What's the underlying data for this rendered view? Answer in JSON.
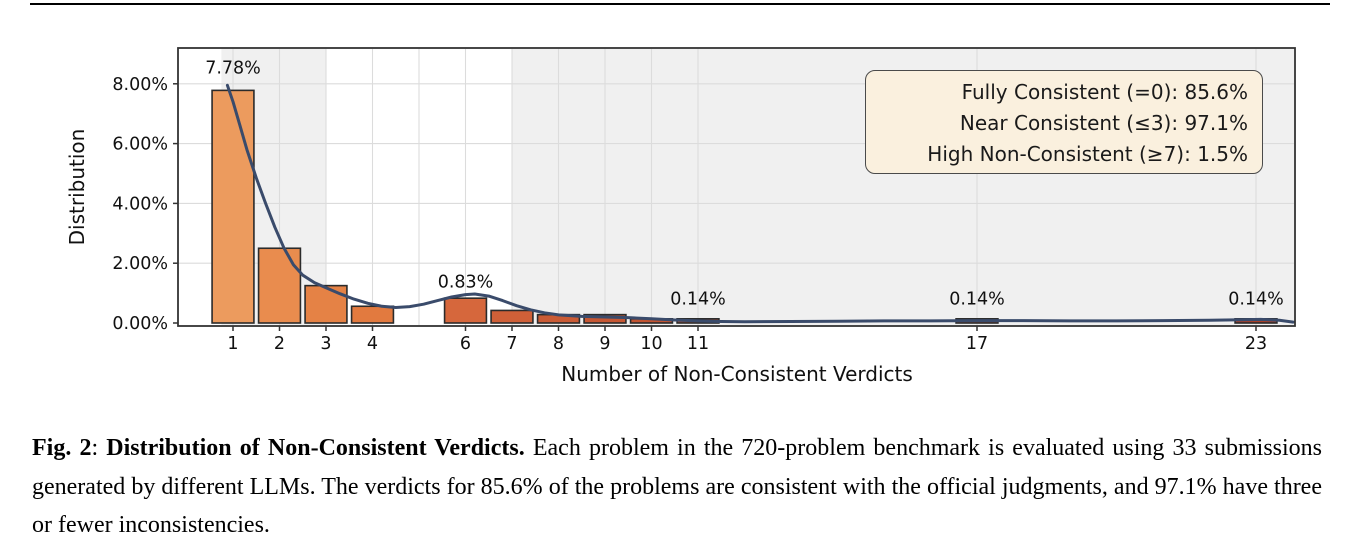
{
  "chart_data": {
    "type": "bar",
    "title": "",
    "xlabel": "Number of Non-Consistent Verdicts",
    "ylabel": "Distribution",
    "categories": [
      1,
      2,
      3,
      4,
      6,
      7,
      8,
      9,
      10,
      11,
      17,
      23
    ],
    "values": [
      7.78,
      2.5,
      1.25,
      0.56,
      0.83,
      0.42,
      0.28,
      0.28,
      0.14,
      0.14,
      0.14,
      0.14
    ],
    "bar_colors": [
      "#ec9b5e",
      "#e98c4e",
      "#e58245",
      "#e27a3f",
      "#d6673c",
      "#cf6038",
      "#ca5b35",
      "#c65733",
      "#c25431",
      "#be5130",
      "#b1462b",
      "#aa3f27"
    ],
    "bar_edge_color": "#2b2b2b",
    "y_ticks": [
      0,
      2,
      4,
      6,
      8
    ],
    "y_tick_labels": [
      "0.00%",
      "2.00%",
      "4.00%",
      "6.00%",
      "8.00%"
    ],
    "ylim": [
      -0.1,
      9.2
    ],
    "xlim": [
      -0.18,
      23.84
    ],
    "grid": true,
    "grid_color": "#dcdcdc",
    "grid_x_positions": [
      1,
      2,
      3,
      4,
      5,
      6,
      7,
      8,
      9,
      10,
      11,
      17,
      23
    ],
    "shaded_bands": [
      {
        "from": 0.75,
        "to": 3.0,
        "meaning": "near consistent (<=3)"
      },
      {
        "from": 7.0,
        "to": 23.84,
        "meaning": "high non-consistent (>=7)"
      }
    ],
    "band_color": "#f0f0f0",
    "spine_color": "#333333",
    "annotations": [
      {
        "x": 1,
        "text": "7.78%",
        "y_pct": 8.35
      },
      {
        "x": 6,
        "text": "0.83%",
        "y_pct": 1.18
      },
      {
        "x": 11,
        "text": "0.14%",
        "y_pct": 0.62
      },
      {
        "x": 17,
        "text": "0.14%",
        "y_pct": 0.62
      },
      {
        "x": 23,
        "text": "0.14%",
        "y_pct": 0.62
      }
    ],
    "kde": {
      "color": "#3a4b6b",
      "width": 3,
      "points": [
        [
          0.88,
          7.95
        ],
        [
          1.0,
          7.4
        ],
        [
          1.15,
          6.6
        ],
        [
          1.3,
          5.8
        ],
        [
          1.5,
          4.85
        ],
        [
          1.7,
          4.0
        ],
        [
          1.9,
          3.2
        ],
        [
          2.1,
          2.5
        ],
        [
          2.3,
          1.95
        ],
        [
          2.5,
          1.6
        ],
        [
          2.75,
          1.35
        ],
        [
          3.0,
          1.18
        ],
        [
          3.3,
          0.98
        ],
        [
          3.6,
          0.8
        ],
        [
          3.9,
          0.66
        ],
        [
          4.2,
          0.56
        ],
        [
          4.5,
          0.52
        ],
        [
          4.8,
          0.55
        ],
        [
          5.1,
          0.63
        ],
        [
          5.4,
          0.75
        ],
        [
          5.7,
          0.87
        ],
        [
          6.0,
          0.95
        ],
        [
          6.2,
          0.97
        ],
        [
          6.5,
          0.9
        ],
        [
          6.8,
          0.75
        ],
        [
          7.1,
          0.58
        ],
        [
          7.4,
          0.44
        ],
        [
          7.7,
          0.34
        ],
        [
          8.0,
          0.27
        ],
        [
          8.5,
          0.22
        ],
        [
          9.0,
          0.2
        ],
        [
          9.5,
          0.18
        ],
        [
          10.0,
          0.14
        ],
        [
          10.5,
          0.1
        ],
        [
          11.0,
          0.07
        ],
        [
          11.5,
          0.05
        ],
        [
          12.0,
          0.04
        ],
        [
          13.0,
          0.05
        ],
        [
          14.0,
          0.06
        ],
        [
          15.0,
          0.07
        ],
        [
          16.0,
          0.07
        ],
        [
          17.0,
          0.08
        ],
        [
          18.0,
          0.08
        ],
        [
          19.0,
          0.07
        ],
        [
          20.0,
          0.07
        ],
        [
          21.0,
          0.08
        ],
        [
          22.0,
          0.09
        ],
        [
          22.7,
          0.11
        ],
        [
          23.1,
          0.12
        ],
        [
          23.5,
          0.09
        ],
        [
          23.8,
          0.03
        ]
      ]
    },
    "legend_position": "upper right"
  },
  "legend": {
    "items": [
      "Fully Consistent (=0): 85.6%",
      "Near Consistent (≤3): 97.1%",
      "High Non-Consistent (≥7): 1.5%"
    ],
    "bg": "#faf0de",
    "border": "#4a4a4a"
  },
  "caption": {
    "fig_label": "Fig. 2",
    "separator": ": ",
    "bold_title": "Distribution of Non-Consistent Verdicts.",
    "body": " Each problem in the 720-problem benchmark is evaluated using 33 submissions generated by different LLMs. The verdicts for 85.6% of the problems are consistent with the official judgments, and 97.1% have three or fewer inconsistencies."
  }
}
